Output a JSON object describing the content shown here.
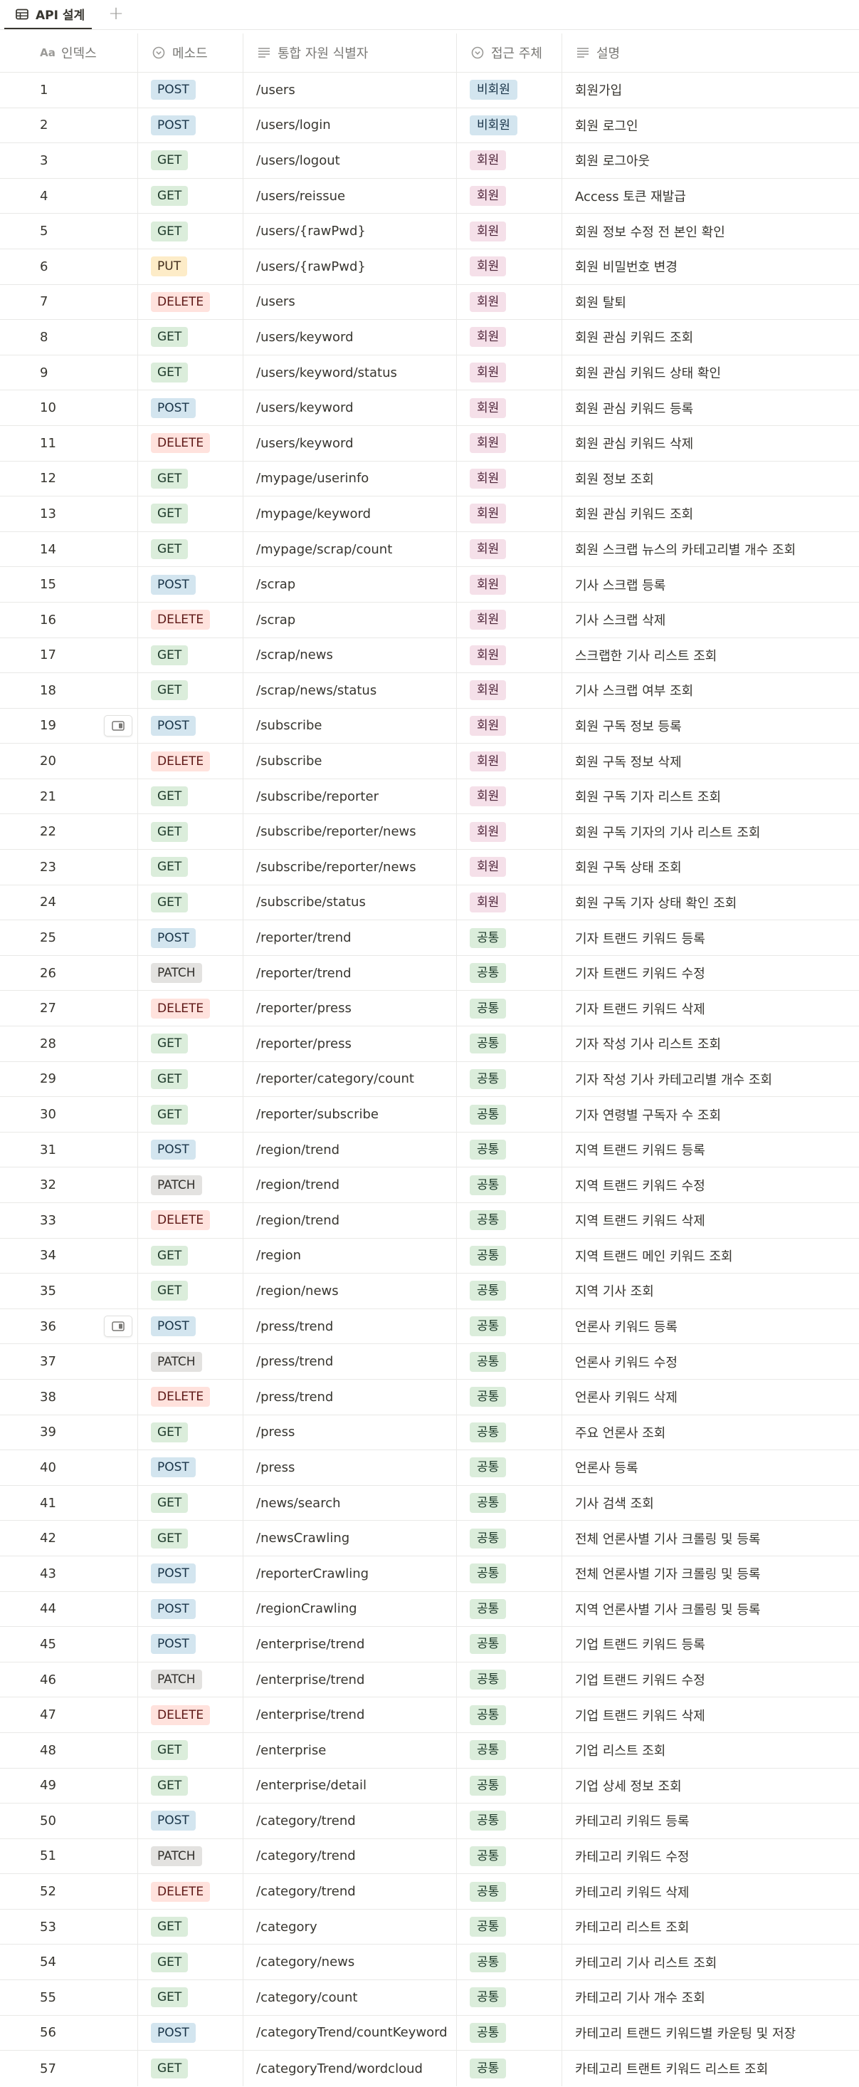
{
  "tab": {
    "label": "API 설계",
    "icon": "table-icon",
    "add": "+"
  },
  "columns": [
    {
      "label": "인덱스",
      "icon_text": "Aa"
    },
    {
      "label": "메소드",
      "icon": "select-icon"
    },
    {
      "label": "통합 자원 식별자",
      "icon": "text-lines-icon"
    },
    {
      "label": "접근 주체",
      "icon": "select-icon"
    },
    {
      "label": "설명",
      "icon": "text-lines-icon"
    }
  ],
  "colors": {
    "member": "#f5e0e9",
    "guest": "#d3e5ef",
    "common": "#dbeddb"
  },
  "rows": [
    {
      "idx": "1",
      "method": "POST",
      "path": "/users",
      "access": "비회원",
      "access_type": "guest",
      "desc": "회원가입"
    },
    {
      "idx": "2",
      "method": "POST",
      "path": "/users/login",
      "access": "비회원",
      "access_type": "guest",
      "desc": "회원 로그인"
    },
    {
      "idx": "3",
      "method": "GET",
      "path": "/users/logout",
      "access": "회원",
      "access_type": "member",
      "desc": "회원 로그아웃"
    },
    {
      "idx": "4",
      "method": "GET",
      "path": "/users/reissue",
      "access": "회원",
      "access_type": "member",
      "desc": "Access 토큰 재발급"
    },
    {
      "idx": "5",
      "method": "GET",
      "path": "/users/{rawPwd}",
      "access": "회원",
      "access_type": "member",
      "desc": "회원 정보 수정 전 본인 확인"
    },
    {
      "idx": "6",
      "method": "PUT",
      "path": "/users/{rawPwd}",
      "access": "회원",
      "access_type": "member",
      "desc": "회원 비밀번호 변경"
    },
    {
      "idx": "7",
      "method": "DELETE",
      "path": "/users",
      "access": "회원",
      "access_type": "member",
      "desc": "회원 탈퇴"
    },
    {
      "idx": "8",
      "method": "GET",
      "path": "/users/keyword",
      "access": "회원",
      "access_type": "member",
      "desc": "회원 관심 키워드 조회"
    },
    {
      "idx": "9",
      "method": "GET",
      "path": "/users/keyword/status",
      "access": "회원",
      "access_type": "member",
      "desc": "회원 관심 키워드 상태 확인"
    },
    {
      "idx": "10",
      "method": "POST",
      "path": "/users/keyword",
      "access": "회원",
      "access_type": "member",
      "desc": "회원 관심 키워드 등록"
    },
    {
      "idx": "11",
      "method": "DELETE",
      "path": "/users/keyword",
      "access": "회원",
      "access_type": "member",
      "desc": "회원 관심 키워드 삭제"
    },
    {
      "idx": "12",
      "method": "GET",
      "path": "/mypage/userinfo",
      "access": "회원",
      "access_type": "member",
      "desc": "회원 정보 조회"
    },
    {
      "idx": "13",
      "method": "GET",
      "path": "/mypage/keyword",
      "access": "회원",
      "access_type": "member",
      "desc": "회원 관심 키워드 조회"
    },
    {
      "idx": "14",
      "method": "GET",
      "path": "/mypage/scrap/count",
      "access": "회원",
      "access_type": "member",
      "desc": "회원 스크랩 뉴스의 카테고리별 개수 조회"
    },
    {
      "idx": "15",
      "method": "POST",
      "path": "/scrap",
      "access": "회원",
      "access_type": "member",
      "desc": "기사 스크랩 등록"
    },
    {
      "idx": "16",
      "method": "DELETE",
      "path": "/scrap",
      "access": "회원",
      "access_type": "member",
      "desc": "기사 스크랩 삭제"
    },
    {
      "idx": "17",
      "method": "GET",
      "path": "/scrap/news",
      "access": "회원",
      "access_type": "member",
      "desc": "스크랩한 기사 리스트 조회"
    },
    {
      "idx": "18",
      "method": "GET",
      "path": "/scrap/news/status",
      "access": "회원",
      "access_type": "member",
      "desc": "기사 스크랩 여부 조회"
    },
    {
      "idx": "19",
      "method": "POST",
      "path": "/subscribe",
      "access": "회원",
      "access_type": "member",
      "desc": "회원 구독 정보 등록",
      "open": true
    },
    {
      "idx": "20",
      "method": "DELETE",
      "path": "/subscribe",
      "access": "회원",
      "access_type": "member",
      "desc": "회원 구독 정보 삭제"
    },
    {
      "idx": "21",
      "method": "GET",
      "path": "/subscribe/reporter",
      "access": "회원",
      "access_type": "member",
      "desc": "회원 구독 기자 리스트 조회"
    },
    {
      "idx": "22",
      "method": "GET",
      "path": "/subscribe/reporter/news",
      "access": "회원",
      "access_type": "member",
      "desc": "회원 구독 기자의 기사 리스트 조회"
    },
    {
      "idx": "23",
      "method": "GET",
      "path": "/subscribe/reporter/news",
      "access": "회원",
      "access_type": "member",
      "desc": "회원 구독 상태 조회"
    },
    {
      "idx": "24",
      "method": "GET",
      "path": "/subscribe/status",
      "access": "회원",
      "access_type": "member",
      "desc": "회원 구독 기자 상태 확인 조회"
    },
    {
      "idx": "25",
      "method": "POST",
      "path": "/reporter/trend",
      "access": "공통",
      "access_type": "common",
      "desc": "기자 트랜드 키워드 등록"
    },
    {
      "idx": "26",
      "method": "PATCH",
      "path": "/reporter/trend",
      "access": "공통",
      "access_type": "common",
      "desc": "기자 트랜드 키워드 수정"
    },
    {
      "idx": "27",
      "method": "DELETE",
      "path": "/reporter/press",
      "access": "공통",
      "access_type": "common",
      "desc": "기자 트랜드 키워드 삭제"
    },
    {
      "idx": "28",
      "method": "GET",
      "path": "/reporter/press",
      "access": "공통",
      "access_type": "common",
      "desc": "기자 작성 기사 리스트 조회"
    },
    {
      "idx": "29",
      "method": "GET",
      "path": "/reporter/category/count",
      "access": "공통",
      "access_type": "common",
      "desc": "기자 작성 기사 카테고리별 개수 조회"
    },
    {
      "idx": "30",
      "method": "GET",
      "path": "/reporter/subscribe",
      "access": "공통",
      "access_type": "common",
      "desc": "기자 연령별 구독자 수 조회"
    },
    {
      "idx": "31",
      "method": "POST",
      "path": "/region/trend",
      "access": "공통",
      "access_type": "common",
      "desc": "지역 트랜드 키워드 등록"
    },
    {
      "idx": "32",
      "method": "PATCH",
      "path": "/region/trend",
      "access": "공통",
      "access_type": "common",
      "desc": "지역 트랜드 키워드 수정"
    },
    {
      "idx": "33",
      "method": "DELETE",
      "path": "/region/trend",
      "access": "공통",
      "access_type": "common",
      "desc": "지역 트랜드 키워드 삭제"
    },
    {
      "idx": "34",
      "method": "GET",
      "path": "/region",
      "access": "공통",
      "access_type": "common",
      "desc": "지역 트랜드 메인 키워드 조회"
    },
    {
      "idx": "35",
      "method": "GET",
      "path": "/region/news",
      "access": "공통",
      "access_type": "common",
      "desc": "지역 기사 조회"
    },
    {
      "idx": "36",
      "method": "POST",
      "path": "/press/trend",
      "access": "공통",
      "access_type": "common",
      "desc": "언론사 키워드 등록",
      "open": true
    },
    {
      "idx": "37",
      "method": "PATCH",
      "path": "/press/trend",
      "access": "공통",
      "access_type": "common",
      "desc": "언론사 키워드 수정"
    },
    {
      "idx": "38",
      "method": "DELETE",
      "path": "/press/trend",
      "access": "공통",
      "access_type": "common",
      "desc": "언론사 키워드 삭제"
    },
    {
      "idx": "39",
      "method": "GET",
      "path": "/press",
      "access": "공통",
      "access_type": "common",
      "desc": "주요 언론사 조회"
    },
    {
      "idx": "40",
      "method": "POST",
      "path": "/press",
      "access": "공통",
      "access_type": "common",
      "desc": "언론사 등록"
    },
    {
      "idx": "41",
      "method": "GET",
      "path": "/news/search",
      "access": "공통",
      "access_type": "common",
      "desc": "기사 검색 조회"
    },
    {
      "idx": "42",
      "method": "GET",
      "path": "/newsCrawling",
      "access": "공통",
      "access_type": "common",
      "desc": "전체 언론사별 기사 크롤링 및 등록"
    },
    {
      "idx": "43",
      "method": "POST",
      "path": "/reporterCrawling",
      "access": "공통",
      "access_type": "common",
      "desc": "전체 언론사별 기자 크롤링 및 등록"
    },
    {
      "idx": "44",
      "method": "POST",
      "path": "/regionCrawling",
      "access": "공통",
      "access_type": "common",
      "desc": "지역 언론사별 기사 크롤링 및 등록"
    },
    {
      "idx": "45",
      "method": "POST",
      "path": "/enterprise/trend",
      "access": "공통",
      "access_type": "common",
      "desc": "기업 트랜드 키워드 등록"
    },
    {
      "idx": "46",
      "method": "PATCH",
      "path": "/enterprise/trend",
      "access": "공통",
      "access_type": "common",
      "desc": "기업 트랜드 키워드 수정"
    },
    {
      "idx": "47",
      "method": "DELETE",
      "path": "/enterprise/trend",
      "access": "공통",
      "access_type": "common",
      "desc": "기업 트랜드 키워드 삭제"
    },
    {
      "idx": "48",
      "method": "GET",
      "path": "/enterprise",
      "access": "공통",
      "access_type": "common",
      "desc": "기업 리스트 조회"
    },
    {
      "idx": "49",
      "method": "GET",
      "path": "/enterprise/detail",
      "access": "공통",
      "access_type": "common",
      "desc": "기업 상세 정보 조회"
    },
    {
      "idx": "50",
      "method": "POST",
      "path": "/category/trend",
      "access": "공통",
      "access_type": "common",
      "desc": "카테고리 키워드 등록"
    },
    {
      "idx": "51",
      "method": "PATCH",
      "path": "/category/trend",
      "access": "공통",
      "access_type": "common",
      "desc": "카테고리 키워드 수정"
    },
    {
      "idx": "52",
      "method": "DELETE",
      "path": "/category/trend",
      "access": "공통",
      "access_type": "common",
      "desc": "카테고리 키워드 삭제"
    },
    {
      "idx": "53",
      "method": "GET",
      "path": "/category",
      "access": "공통",
      "access_type": "common",
      "desc": "카테고리 리스트 조회"
    },
    {
      "idx": "54",
      "method": "GET",
      "path": "/category/news",
      "access": "공통",
      "access_type": "common",
      "desc": "카테고리 기사 리스트 조회"
    },
    {
      "idx": "55",
      "method": "GET",
      "path": "/category/count",
      "access": "공통",
      "access_type": "common",
      "desc": "카테고리 기사 개수 조회"
    },
    {
      "idx": "56",
      "method": "POST",
      "path": "/categoryTrend/countKeyword",
      "access": "공통",
      "access_type": "common",
      "desc": "카테고리 트랜드 키워드별 카운팅 및 저장"
    },
    {
      "idx": "57",
      "method": "GET",
      "path": "/categoryTrend/wordcloud",
      "access": "공통",
      "access_type": "common",
      "desc": "카테고리 트랜트 키워드 리스트 조회"
    }
  ]
}
